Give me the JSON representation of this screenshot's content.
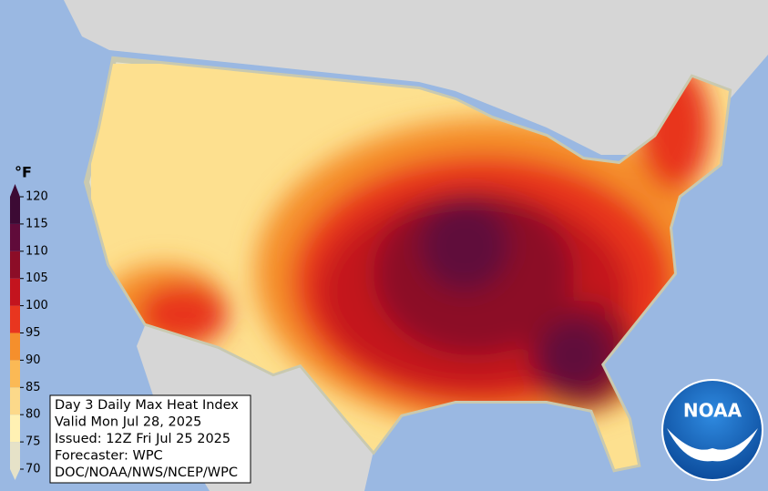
{
  "colorbar": {
    "unit": "°F",
    "ticks": [
      70,
      75,
      80,
      85,
      90,
      95,
      100,
      105,
      110,
      115,
      120
    ],
    "colors": [
      "#e6e2c8",
      "#fff1b3",
      "#fcd98a",
      "#fbb955",
      "#f58f2c",
      "#e8361f",
      "#c3141e",
      "#8c0d27",
      "#600b3a",
      "#3c0a34"
    ]
  },
  "info_box": {
    "lines": [
      "Day 3 Daily Max Heat Index",
      "Valid Mon Jul 28, 2025",
      "Issued: 12Z Fri Jul 25 2025",
      "Forecaster: WPC",
      "DOC/NOAA/NWS/NCEP/WPC"
    ]
  },
  "logo": {
    "text": "NOAA"
  }
}
